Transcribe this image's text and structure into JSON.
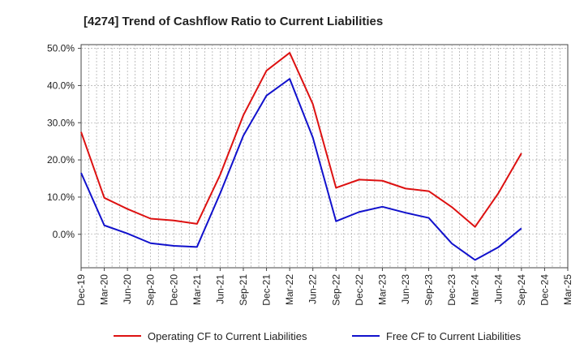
{
  "chart_data": {
    "type": "line",
    "title": "[4274]  Trend of Cashflow Ratio to Current Liabilities",
    "xlabel": "",
    "ylabel": "",
    "x": [
      "Dec-19",
      "Mar-20",
      "Jun-20",
      "Sep-20",
      "Dec-20",
      "Mar-21",
      "Jun-21",
      "Sep-21",
      "Dec-21",
      "Mar-22",
      "Jun-22",
      "Sep-22",
      "Dec-22",
      "Mar-23",
      "Jun-23",
      "Sep-23",
      "Dec-23",
      "Mar-24",
      "Jun-24",
      "Sep-24",
      "Dec-24",
      "Mar-25"
    ],
    "x_tick_labels": [
      "Dec-19",
      "Mar-20",
      "Jun-20",
      "Sep-20",
      "Dec-20",
      "Mar-21",
      "Jun-21",
      "Sep-21",
      "Dec-21",
      "Mar-22",
      "Jun-22",
      "Sep-22",
      "Dec-22",
      "Mar-23",
      "Jun-23",
      "Sep-23",
      "Dec-23",
      "Mar-24",
      "Jun-24",
      "Sep-24",
      "Dec-24",
      "Mar-25"
    ],
    "ylim": [
      -9,
      51
    ],
    "y_ticks": [
      0,
      10,
      20,
      30,
      40,
      50
    ],
    "y_tick_labels": [
      "0.0%",
      "10.0%",
      "20.0%",
      "30.0%",
      "40.0%",
      "50.0%"
    ],
    "grid": true,
    "legend_placement": "bottom",
    "series": [
      {
        "name": "Operating CF to Current Liabilities",
        "color": "#dd1111",
        "values": [
          27.5,
          9.8,
          6.8,
          4.2,
          3.7,
          2.8,
          16.0,
          32.0,
          44.0,
          48.8,
          35.0,
          12.5,
          14.7,
          14.4,
          12.3,
          11.6,
          7.3,
          2.0,
          11.0,
          21.8,
          null,
          null
        ]
      },
      {
        "name": "Free CF to Current Liabilities",
        "color": "#1111cc",
        "values": [
          16.5,
          2.4,
          0.2,
          -2.4,
          -3.1,
          -3.4,
          11.0,
          26.5,
          37.3,
          41.8,
          26.0,
          3.5,
          6.0,
          7.4,
          5.8,
          4.4,
          -2.5,
          -6.9,
          -3.5,
          1.6,
          null,
          null
        ]
      }
    ]
  }
}
